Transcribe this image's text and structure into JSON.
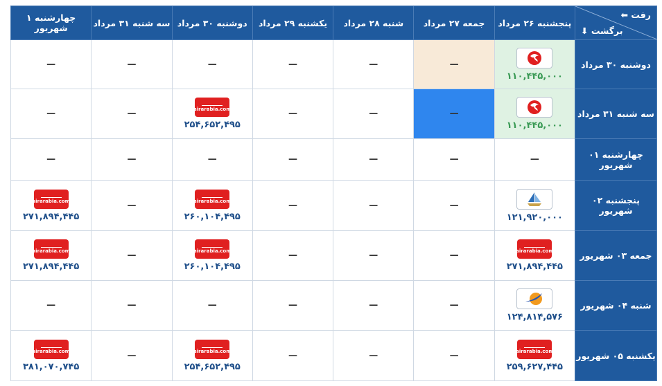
{
  "header": {
    "depart": "رفت ⬅",
    "return": "برگشت ⬇"
  },
  "columns": [
    "پنجشنبه ۲۶ مرداد",
    "جمعه ۲۷ مرداد",
    "شنبه ۲۸ مرداد",
    "یکشنبه ۲۹ مرداد",
    "دوشنبه ۳۰ مرداد",
    "سه شنبه ۳۱ مرداد",
    "چهارشنبه ۱ شهریور"
  ],
  "rows": [
    {
      "label": "دوشنبه ۳۰ مرداد",
      "cells": [
        {
          "price": "۱۱۰,۴۴۵,۰۰۰",
          "logo": "red-bird",
          "highlight": "green"
        },
        {
          "text": "—",
          "highlight": "beige"
        },
        {
          "text": "—"
        },
        {
          "text": "—"
        },
        {
          "text": "—"
        },
        {
          "text": "—"
        },
        {
          "text": "—"
        }
      ]
    },
    {
      "label": "سه شنبه ۳۱ مرداد",
      "cells": [
        {
          "price": "۱۱۰,۴۴۵,۰۰۰",
          "logo": "red-bird",
          "highlight": "green"
        },
        {
          "text": "—",
          "highlight": "blue"
        },
        {
          "text": "—"
        },
        {
          "text": "—"
        },
        {
          "price": "۲۵۴,۶۵۲,۴۹۵",
          "logo_text": "airarabia.com"
        },
        {
          "text": "—"
        },
        {
          "text": "—"
        }
      ]
    },
    {
      "label": "چهارشنبه ۰۱ شهریور",
      "cells": [
        {
          "text": "—"
        },
        {
          "text": "—"
        },
        {
          "text": "—"
        },
        {
          "text": "—"
        },
        {
          "text": "—"
        },
        {
          "text": "—"
        },
        {
          "text": "—"
        }
      ]
    },
    {
      "label": "پنجشنبه ۰۲ شهریور",
      "cells": [
        {
          "price": "۱۲۱,۹۲۰,۰۰۰",
          "logo": "blue-ship"
        },
        {
          "text": "—"
        },
        {
          "text": "—"
        },
        {
          "text": "—"
        },
        {
          "price": "۲۶۰,۱۰۴,۴۹۵",
          "logo_text": "airarabia.com"
        },
        {
          "text": "—"
        },
        {
          "price": "۲۷۱,۸۹۴,۴۴۵",
          "logo_text": "airarabia.com"
        }
      ]
    },
    {
      "label": "جمعه ۰۳ شهریور",
      "cells": [
        {
          "price": "۲۷۱,۸۹۴,۴۴۵",
          "logo_text": "airarabia.com"
        },
        {
          "text": "—"
        },
        {
          "text": "—"
        },
        {
          "text": "—"
        },
        {
          "price": "۲۶۰,۱۰۴,۴۹۵",
          "logo_text": "airarabia.com"
        },
        {
          "text": "—"
        },
        {
          "price": "۲۷۱,۸۹۴,۴۴۵",
          "logo_text": "airarabia.com"
        }
      ]
    },
    {
      "label": "شنبه ۰۴ شهریور",
      "cells": [
        {
          "price": "۱۲۴,۸۱۴,۵۷۶",
          "logo": "orange-globe"
        },
        {
          "text": "—"
        },
        {
          "text": "—"
        },
        {
          "text": "—"
        },
        {
          "text": "—"
        },
        {
          "text": "—"
        },
        {
          "text": "—"
        }
      ]
    },
    {
      "label": "یکشنبه ۰۵ شهریور",
      "cells": [
        {
          "price": "۲۵۹,۶۲۷,۴۴۵",
          "logo_text": "airarabia.com"
        },
        {
          "text": "—"
        },
        {
          "text": "—"
        },
        {
          "text": "—"
        },
        {
          "price": "۲۵۴,۶۵۲,۴۹۵",
          "logo_text": "airarabia.com"
        },
        {
          "text": "—"
        },
        {
          "price": "۳۸۱,۰۷۰,۷۴۵",
          "logo_text": "airarabia.com"
        }
      ]
    }
  ]
}
